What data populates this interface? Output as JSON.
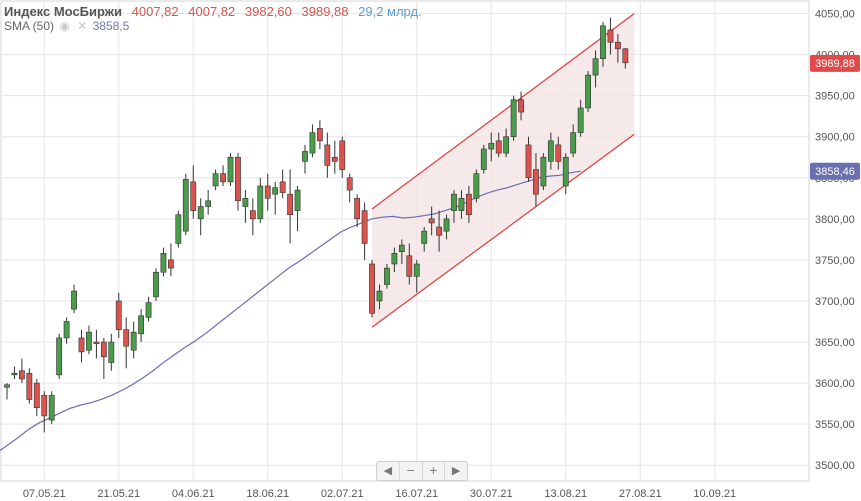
{
  "header": {
    "title": "Индекс МосБиржи",
    "ohlc": [
      "4007,82",
      "4007,82",
      "3982,60",
      "3989,88"
    ],
    "volume": "29,2 млрд.",
    "indicator_label": "SMA (50)",
    "indicator_value": "3858,5"
  },
  "colors": {
    "up": "#4a9c4a",
    "down": "#d9534f",
    "sma": "#6a6fb0",
    "channel": "#e23b3b",
    "channel_fill": "#f3e2e2",
    "grid": "#e6e6e6"
  },
  "navigator": {
    "left_icon": "arrow-left-icon",
    "minus_icon": "zoom-out-icon",
    "plus_icon": "zoom-in-icon",
    "right_icon": "arrow-right-icon",
    "left": "◀",
    "minus": "−",
    "plus": "+",
    "right": "▶"
  },
  "chart_data": {
    "type": "candlestick",
    "title": "Индекс МосБиржи",
    "y_ticks": [
      "3500,00",
      "3550,00",
      "3600,00",
      "3650,00",
      "3700,00",
      "3750,00",
      "3800,00",
      "3850,00",
      "3900,00",
      "3950,00",
      "4000,00",
      "4050,00"
    ],
    "ylim": [
      3482,
      4064
    ],
    "x_ticks": [
      "07.05.21",
      "21.05.21",
      "04.06.21",
      "18.06.21",
      "02.07.21",
      "16.07.21",
      "30.07.21",
      "13.08.21",
      "27.08.21",
      "10.09.21"
    ],
    "x_tick_index": [
      5,
      15,
      25,
      35,
      45,
      55,
      65,
      75,
      85,
      95
    ],
    "last_price_label": "3989,88",
    "sma_label": "3858,46",
    "candles": [
      [
        3595,
        3600,
        3580,
        3598
      ],
      [
        3610,
        3620,
        3605,
        3612
      ],
      [
        3615,
        3630,
        3600,
        3605
      ],
      [
        3612,
        3618,
        3575,
        3580
      ],
      [
        3600,
        3605,
        3560,
        3570
      ],
      [
        3585,
        3590,
        3540,
        3560
      ],
      [
        3555,
        3590,
        3550,
        3585
      ],
      [
        3610,
        3660,
        3605,
        3655
      ],
      [
        3655,
        3680,
        3648,
        3675
      ],
      [
        3690,
        3720,
        3685,
        3712
      ],
      [
        3655,
        3665,
        3625,
        3638
      ],
      [
        3640,
        3670,
        3635,
        3662
      ],
      [
        3650,
        3665,
        3630,
        3648
      ],
      [
        3650,
        3655,
        3605,
        3632
      ],
      [
        3625,
        3660,
        3615,
        3650
      ],
      [
        3700,
        3710,
        3655,
        3665
      ],
      [
        3665,
        3680,
        3618,
        3645
      ],
      [
        3640,
        3675,
        3630,
        3662
      ],
      [
        3660,
        3690,
        3650,
        3682
      ],
      [
        3680,
        3705,
        3675,
        3698
      ],
      [
        3705,
        3740,
        3700,
        3735
      ],
      [
        3735,
        3765,
        3730,
        3758
      ],
      [
        3750,
        3770,
        3730,
        3740
      ],
      [
        3770,
        3810,
        3765,
        3805
      ],
      [
        3785,
        3855,
        3780,
        3848
      ],
      [
        3845,
        3865,
        3800,
        3810
      ],
      [
        3800,
        3825,
        3780,
        3815
      ],
      [
        3815,
        3835,
        3805,
        3822
      ],
      [
        3840,
        3860,
        3835,
        3855
      ],
      [
        3855,
        3865,
        3840,
        3845
      ],
      [
        3845,
        3880,
        3840,
        3875
      ],
      [
        3875,
        3880,
        3810,
        3822
      ],
      [
        3815,
        3835,
        3795,
        3825
      ],
      [
        3810,
        3825,
        3780,
        3800
      ],
      [
        3800,
        3850,
        3795,
        3840
      ],
      [
        3840,
        3855,
        3810,
        3825
      ],
      [
        3830,
        3845,
        3805,
        3838
      ],
      [
        3845,
        3860,
        3825,
        3832
      ],
      [
        3830,
        3860,
        3770,
        3805
      ],
      [
        3810,
        3840,
        3785,
        3835
      ],
      [
        3870,
        3890,
        3855,
        3882
      ],
      [
        3880,
        3915,
        3875,
        3905
      ],
      [
        3910,
        3920,
        3885,
        3895
      ],
      [
        3890,
        3905,
        3850,
        3865
      ],
      [
        3875,
        3895,
        3855,
        3870
      ],
      [
        3895,
        3900,
        3850,
        3860
      ],
      [
        3850,
        3855,
        3820,
        3835
      ],
      [
        3825,
        3830,
        3790,
        3800
      ],
      [
        3810,
        3820,
        3750,
        3770
      ],
      [
        3745,
        3750,
        3680,
        3685
      ],
      [
        3700,
        3720,
        3690,
        3712
      ],
      [
        3720,
        3745,
        3715,
        3740
      ],
      [
        3745,
        3765,
        3735,
        3758
      ],
      [
        3760,
        3775,
        3745,
        3768
      ],
      [
        3755,
        3770,
        3720,
        3730
      ],
      [
        3730,
        3750,
        3710,
        3745
      ],
      [
        3770,
        3790,
        3760,
        3785
      ],
      [
        3800,
        3815,
        3780,
        3795
      ],
      [
        3790,
        3810,
        3760,
        3780
      ],
      [
        3785,
        3805,
        3775,
        3800
      ],
      [
        3810,
        3835,
        3795,
        3830
      ],
      [
        3810,
        3835,
        3800,
        3825
      ],
      [
        3830,
        3840,
        3795,
        3805
      ],
      [
        3825,
        3860,
        3820,
        3855
      ],
      [
        3860,
        3890,
        3855,
        3885
      ],
      [
        3885,
        3905,
        3870,
        3892
      ],
      [
        3895,
        3905,
        3875,
        3880
      ],
      [
        3880,
        3910,
        3875,
        3900
      ],
      [
        3900,
        3950,
        3895,
        3945
      ],
      [
        3945,
        3955,
        3920,
        3930
      ],
      [
        3890,
        3900,
        3845,
        3850
      ],
      [
        3860,
        3880,
        3815,
        3830
      ],
      [
        3840,
        3880,
        3835,
        3875
      ],
      [
        3870,
        3905,
        3860,
        3895
      ],
      [
        3890,
        3900,
        3860,
        3870
      ],
      [
        3840,
        3880,
        3830,
        3875
      ],
      [
        3880,
        3915,
        3875,
        3905
      ],
      [
        3905,
        3945,
        3900,
        3935
      ],
      [
        3935,
        3980,
        3930,
        3975
      ],
      [
        3975,
        4005,
        3960,
        3995
      ],
      [
        3995,
        4040,
        3985,
        4035
      ],
      [
        4030,
        4045,
        4000,
        4015
      ],
      [
        4015,
        4025,
        3990,
        4007
      ],
      [
        4007,
        4008,
        3983,
        3990
      ]
    ],
    "sma": [
      3488,
      3494,
      3500,
      3507,
      3515,
      3524,
      3533,
      3543,
      3551,
      3557,
      3563,
      3569,
      3573,
      3576,
      3580,
      3585,
      3591,
      3598,
      3606,
      3615,
      3625,
      3634,
      3643,
      3651,
      3660,
      3670,
      3680,
      3690,
      3700,
      3710,
      3720,
      3730,
      3740,
      3748,
      3757,
      3766,
      3775,
      3784,
      3790,
      3795,
      3800,
      3802,
      3803,
      3801,
      3802,
      3804,
      3806,
      3810,
      3814,
      3820,
      3826,
      3831,
      3835,
      3838,
      3842,
      3846,
      3850,
      3852,
      3853,
      3856,
      3858
    ]
  }
}
